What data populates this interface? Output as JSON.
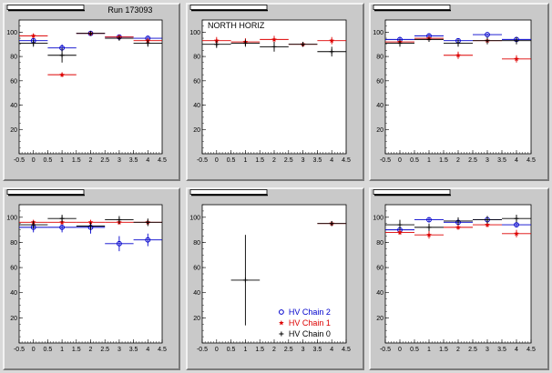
{
  "colors": {
    "blue": "#0000cc",
    "red": "#dd0000",
    "black": "#000000"
  },
  "chart_data": [
    {
      "type": "scatter",
      "title": "",
      "annotation": "Run 173093",
      "xlim": [
        -0.5,
        4.5
      ],
      "ylim": [
        0,
        110
      ],
      "x_ticks": [
        "-0.5",
        "0",
        "0.5",
        "1",
        "1.5",
        "2",
        "2.5",
        "3",
        "3.5",
        "4",
        "4.5"
      ],
      "y_ticks": [
        "20",
        "40",
        "60",
        "80",
        "100"
      ],
      "series": [
        {
          "marker": "circle",
          "color": "#0000cc",
          "points": [
            {
              "x": 0,
              "y": 93,
              "xerr": 0.5,
              "yerr": 2
            },
            {
              "x": 1,
              "y": 87,
              "xerr": 0.5,
              "yerr": 3
            },
            {
              "x": 2,
              "y": 99,
              "xerr": 0.5,
              "yerr": 1
            },
            {
              "x": 3,
              "y": 96,
              "xerr": 0.5,
              "yerr": 2
            },
            {
              "x": 4,
              "y": 95,
              "xerr": 0.5,
              "yerr": 2
            }
          ]
        },
        {
          "marker": "star",
          "color": "#dd0000",
          "points": [
            {
              "x": 0,
              "y": 97,
              "xerr": 0.5,
              "yerr": 2
            },
            {
              "x": 1,
              "y": 65,
              "xerr": 0.5,
              "yerr": 2
            },
            {
              "x": 2,
              "y": 99,
              "xerr": 0.5,
              "yerr": 1
            },
            {
              "x": 3,
              "y": 96,
              "xerr": 0.5,
              "yerr": 2
            },
            {
              "x": 4,
              "y": 93,
              "xerr": 0.5,
              "yerr": 2
            }
          ]
        },
        {
          "marker": "cross",
          "color": "#000000",
          "points": [
            {
              "x": 0,
              "y": 91,
              "xerr": 0.5,
              "yerr": 3
            },
            {
              "x": 1,
              "y": 81,
              "xerr": 0.5,
              "yerr": 6
            },
            {
              "x": 2,
              "y": 99,
              "xerr": 0.5,
              "yerr": 1
            },
            {
              "x": 3,
              "y": 95,
              "xerr": 0.5,
              "yerr": 2
            },
            {
              "x": 4,
              "y": 91,
              "xerr": 0.5,
              "yerr": 3
            }
          ]
        }
      ]
    },
    {
      "type": "scatter",
      "title": "",
      "annotation": "NORTH HORIZ",
      "xlim": [
        -0.5,
        4.5
      ],
      "ylim": [
        0,
        110
      ],
      "x_ticks": [
        "-0.5",
        "0",
        "0.5",
        "1",
        "1.5",
        "2",
        "2.5",
        "3",
        "3.5",
        "4",
        "4.5"
      ],
      "y_ticks": [
        "20",
        "40",
        "60",
        "80",
        "100"
      ],
      "series": [
        {
          "marker": "star",
          "color": "#dd0000",
          "points": [
            {
              "x": 0,
              "y": 93,
              "xerr": 0.5,
              "yerr": 3
            },
            {
              "x": 1,
              "y": 92,
              "xerr": 0.5,
              "yerr": 3
            },
            {
              "x": 2,
              "y": 94,
              "xerr": 0.5,
              "yerr": 3
            },
            {
              "x": 3,
              "y": 90,
              "xerr": 0.5,
              "yerr": 2
            },
            {
              "x": 4,
              "y": 93,
              "xerr": 0.5,
              "yerr": 3
            }
          ]
        },
        {
          "marker": "cross",
          "color": "#000000",
          "points": [
            {
              "x": 0,
              "y": 90,
              "xerr": 0.5,
              "yerr": 3
            },
            {
              "x": 1,
              "y": 91,
              "xerr": 0.5,
              "yerr": 3
            },
            {
              "x": 2,
              "y": 88,
              "xerr": 0.5,
              "yerr": 4
            },
            {
              "x": 3,
              "y": 90,
              "xerr": 0.5,
              "yerr": 2
            },
            {
              "x": 4,
              "y": 84,
              "xerr": 0.5,
              "yerr": 4
            }
          ]
        }
      ]
    },
    {
      "type": "scatter",
      "title": "",
      "annotation": "",
      "xlim": [
        -0.5,
        4.5
      ],
      "ylim": [
        0,
        110
      ],
      "x_ticks": [
        "-0.5",
        "0",
        "0.5",
        "1",
        "1.5",
        "2",
        "2.5",
        "3",
        "3.5",
        "4",
        "4.5"
      ],
      "y_ticks": [
        "20",
        "40",
        "60",
        "80",
        "100"
      ],
      "series": [
        {
          "marker": "circle",
          "color": "#0000cc",
          "points": [
            {
              "x": 0,
              "y": 94,
              "xerr": 0.5,
              "yerr": 2
            },
            {
              "x": 1,
              "y": 97,
              "xerr": 0.5,
              "yerr": 2
            },
            {
              "x": 2,
              "y": 93,
              "xerr": 0.5,
              "yerr": 2
            },
            {
              "x": 3,
              "y": 98,
              "xerr": 0.5,
              "yerr": 1
            },
            {
              "x": 4,
              "y": 94,
              "xerr": 0.5,
              "yerr": 2
            }
          ]
        },
        {
          "marker": "star",
          "color": "#dd0000",
          "points": [
            {
              "x": 0,
              "y": 92,
              "xerr": 0.5,
              "yerr": 2
            },
            {
              "x": 1,
              "y": 95,
              "xerr": 0.5,
              "yerr": 2
            },
            {
              "x": 2,
              "y": 81,
              "xerr": 0.5,
              "yerr": 3
            },
            {
              "x": 3,
              "y": 93,
              "xerr": 0.5,
              "yerr": 2
            },
            {
              "x": 4,
              "y": 78,
              "xerr": 0.5,
              "yerr": 3
            }
          ]
        },
        {
          "marker": "cross",
          "color": "#000000",
          "points": [
            {
              "x": 0,
              "y": 91,
              "xerr": 0.5,
              "yerr": 3
            },
            {
              "x": 1,
              "y": 94,
              "xerr": 0.5,
              "yerr": 2
            },
            {
              "x": 2,
              "y": 91,
              "xerr": 0.5,
              "yerr": 3
            },
            {
              "x": 3,
              "y": 93,
              "xerr": 0.5,
              "yerr": 3
            },
            {
              "x": 4,
              "y": 93,
              "xerr": 0.5,
              "yerr": 3
            }
          ]
        }
      ]
    },
    {
      "type": "scatter",
      "title": "",
      "annotation": "",
      "xlim": [
        -0.5,
        4.5
      ],
      "ylim": [
        0,
        110
      ],
      "x_ticks": [
        "-0.5",
        "0",
        "0.5",
        "1",
        "1.5",
        "2",
        "2.5",
        "3",
        "3.5",
        "4",
        "4.5"
      ],
      "y_ticks": [
        "20",
        "40",
        "60",
        "80",
        "100"
      ],
      "series": [
        {
          "marker": "circle",
          "color": "#0000cc",
          "points": [
            {
              "x": 0,
              "y": 92,
              "xerr": 0.5,
              "yerr": 4
            },
            {
              "x": 1,
              "y": 92,
              "xerr": 0.5,
              "yerr": 4
            },
            {
              "x": 2,
              "y": 92,
              "xerr": 0.5,
              "yerr": 5
            },
            {
              "x": 3,
              "y": 79,
              "xerr": 0.5,
              "yerr": 6
            },
            {
              "x": 4,
              "y": 82,
              "xerr": 0.5,
              "yerr": 5
            }
          ]
        },
        {
          "marker": "star",
          "color": "#dd0000",
          "points": [
            {
              "x": 0,
              "y": 96,
              "xerr": 0.5,
              "yerr": 2
            },
            {
              "x": 1,
              "y": 96,
              "xerr": 0.5,
              "yerr": 2
            },
            {
              "x": 2,
              "y": 96,
              "xerr": 0.5,
              "yerr": 2
            },
            {
              "x": 3,
              "y": 96,
              "xerr": 0.5,
              "yerr": 2
            },
            {
              "x": 4,
              "y": 96,
              "xerr": 0.5,
              "yerr": 2
            }
          ]
        },
        {
          "marker": "cross",
          "color": "#000000",
          "points": [
            {
              "x": 0,
              "y": 94,
              "xerr": 0.5,
              "yerr": 3
            },
            {
              "x": 1,
              "y": 99,
              "xerr": 0.5,
              "yerr": 3
            },
            {
              "x": 2,
              "y": 93,
              "xerr": 0.5,
              "yerr": 3
            },
            {
              "x": 3,
              "y": 98,
              "xerr": 0.5,
              "yerr": 3
            },
            {
              "x": 4,
              "y": 96,
              "xerr": 0.5,
              "yerr": 3
            }
          ]
        }
      ]
    },
    {
      "type": "scatter",
      "title": "",
      "annotation": "",
      "xlim": [
        -0.5,
        4.5
      ],
      "ylim": [
        0,
        110
      ],
      "x_ticks": [
        "-0.5",
        "0",
        "0.5",
        "1",
        "1.5",
        "2",
        "2.5",
        "3",
        "3.5",
        "4",
        "4.5"
      ],
      "y_ticks": [
        "20",
        "40",
        "60",
        "80",
        "100"
      ],
      "legend": {
        "placement": "bottom-right",
        "entries": [
          {
            "label": "HV Chain 2",
            "marker": "circle",
            "color": "#0000cc"
          },
          {
            "label": "HV Chain 1",
            "marker": "star",
            "color": "#dd0000"
          },
          {
            "label": "HV Chain 0",
            "marker": "cross",
            "color": "#000000"
          }
        ]
      },
      "series": [
        {
          "marker": "star",
          "color": "#dd0000",
          "points": [
            {
              "x": 4,
              "y": 95,
              "xerr": 0.5,
              "yerr": 2
            }
          ]
        },
        {
          "marker": "cross",
          "color": "#000000",
          "points": [
            {
              "x": 1,
              "y": 50,
              "xerr": 0.5,
              "yerr": 36
            },
            {
              "x": 4,
              "y": 95,
              "xerr": 0.5,
              "yerr": 2
            }
          ]
        }
      ]
    },
    {
      "type": "scatter",
      "title": "",
      "annotation": "",
      "xlim": [
        -0.5,
        4.5
      ],
      "ylim": [
        0,
        110
      ],
      "x_ticks": [
        "-0.5",
        "0",
        "0.5",
        "1",
        "1.5",
        "2",
        "2.5",
        "3",
        "3.5",
        "4",
        "4.5"
      ],
      "y_ticks": [
        "20",
        "40",
        "60",
        "80",
        "100"
      ],
      "series": [
        {
          "marker": "circle",
          "color": "#0000cc",
          "points": [
            {
              "x": 0,
              "y": 90,
              "xerr": 0.5,
              "yerr": 2
            },
            {
              "x": 1,
              "y": 98,
              "xerr": 0.5,
              "yerr": 2
            },
            {
              "x": 2,
              "y": 96,
              "xerr": 0.5,
              "yerr": 2
            },
            {
              "x": 3,
              "y": 98,
              "xerr": 0.5,
              "yerr": 2
            },
            {
              "x": 4,
              "y": 94,
              "xerr": 0.5,
              "yerr": 2
            }
          ]
        },
        {
          "marker": "star",
          "color": "#dd0000",
          "points": [
            {
              "x": 0,
              "y": 88,
              "xerr": 0.5,
              "yerr": 2
            },
            {
              "x": 1,
              "y": 86,
              "xerr": 0.5,
              "yerr": 3
            },
            {
              "x": 2,
              "y": 92,
              "xerr": 0.5,
              "yerr": 2
            },
            {
              "x": 3,
              "y": 94,
              "xerr": 0.5,
              "yerr": 2
            },
            {
              "x": 4,
              "y": 87,
              "xerr": 0.5,
              "yerr": 3
            }
          ]
        },
        {
          "marker": "cross",
          "color": "#000000",
          "points": [
            {
              "x": 0,
              "y": 94,
              "xerr": 0.5,
              "yerr": 4
            },
            {
              "x": 1,
              "y": 92,
              "xerr": 0.5,
              "yerr": 3
            },
            {
              "x": 2,
              "y": 97,
              "xerr": 0.5,
              "yerr": 3
            },
            {
              "x": 3,
              "y": 98,
              "xerr": 0.5,
              "yerr": 3
            },
            {
              "x": 4,
              "y": 99,
              "xerr": 0.5,
              "yerr": 3
            }
          ]
        }
      ]
    }
  ]
}
